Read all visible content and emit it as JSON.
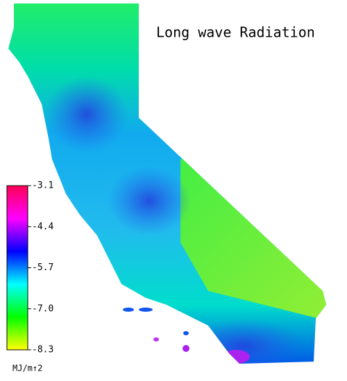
{
  "title": "Long wave Radiation",
  "colorbar": {
    "clim": [
      -8.3,
      -3.1
    ],
    "ticks": [
      -3.1,
      -4.4,
      -5.7,
      {
        "value": -7,
        "label": "-7.0"
      },
      -8.3
    ],
    "colors": [
      "#ffff00",
      "#00ff00",
      "#00ffff",
      "#0000ff",
      "#ff00ff",
      "#ff0055"
    ],
    "unit": "MJ/m↑2"
  }
}
